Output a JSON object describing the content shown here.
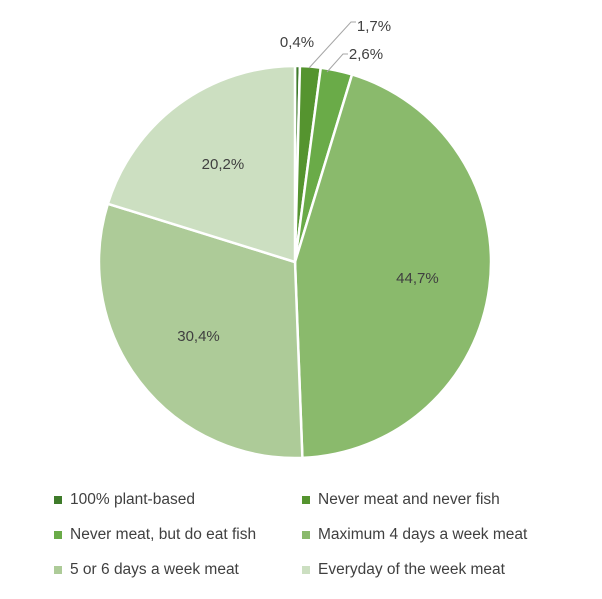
{
  "chart_data": {
    "type": "pie",
    "title": "",
    "categories": [
      "100% plant-based",
      "Never meat and never fish",
      "Never meat, but do eat fish",
      "Maximum 4 days a week meat",
      "5 or 6 days a week meat",
      "Everyday of the week meat"
    ],
    "values": [
      0.4,
      1.7,
      2.6,
      44.7,
      30.4,
      20.2
    ],
    "data_labels": [
      "0,4%",
      "1,7%",
      "2,6%",
      "44,7%",
      "30,4%",
      "20,2%"
    ],
    "colors": [
      "#3e7b2a",
      "#55942f",
      "#6aab48",
      "#8aba6c",
      "#adcb98",
      "#ccdfc1"
    ],
    "legend_position": "bottom"
  }
}
